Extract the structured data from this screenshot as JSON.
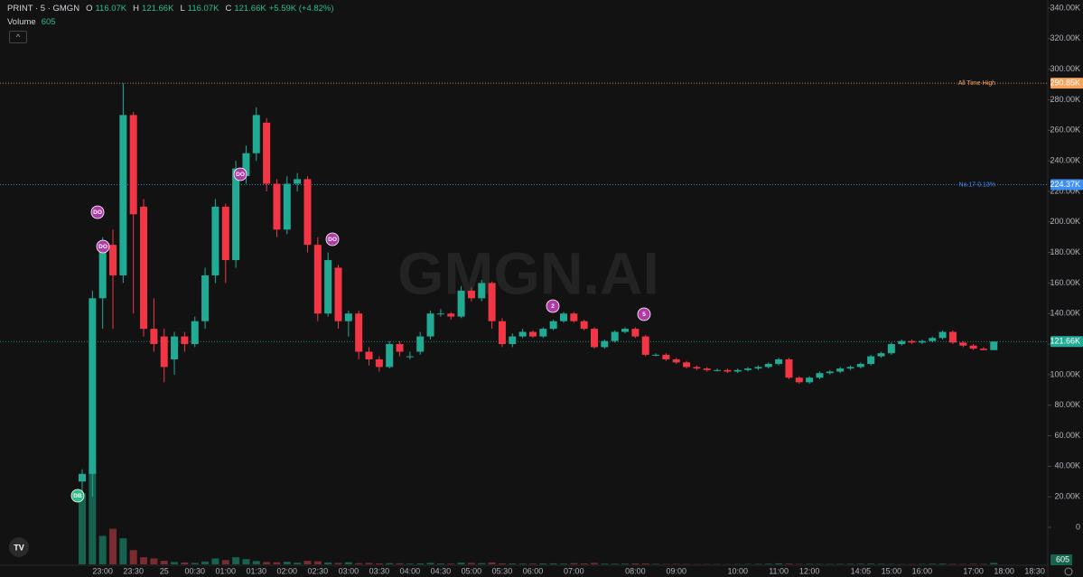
{
  "header": {
    "symbol": "PRINT · 5 · GMGN",
    "o_label": "O",
    "o": "116.07K",
    "h_label": "H",
    "h": "121.66K",
    "l_label": "L",
    "l": "116.07K",
    "c_label": "C",
    "c": "121.66K",
    "change": "+5.59K (+4.82%)",
    "volume_label": "Volume"
  },
  "watermark": "GMGN.AI",
  "markers": [
    {
      "label": "DO"
    },
    {
      "label": "DO"
    },
    {
      "label": "DO"
    },
    {
      "label": "DO"
    },
    {
      "label": "DB"
    },
    {
      "label": "2"
    },
    {
      "label": "5"
    }
  ],
  "chart_data": {
    "type": "candlestick",
    "categories": [
      null,
      null,
      "23:00",
      null,
      null,
      "23:30",
      null,
      null,
      "25",
      null,
      null,
      "00:30",
      null,
      null,
      "01:00",
      null,
      null,
      "01:30",
      null,
      null,
      "02:00",
      null,
      null,
      "02:30",
      null,
      null,
      "03:00",
      null,
      null,
      "03:30",
      null,
      null,
      "04:00",
      null,
      null,
      "04:30",
      null,
      null,
      "05:00",
      null,
      null,
      "05:30",
      null,
      null,
      "06:00",
      null,
      null,
      null,
      "07:00",
      null,
      null,
      null,
      null,
      null,
      "08:00",
      null,
      null,
      null,
      "09:00",
      null,
      null,
      null,
      null,
      null,
      "10:00",
      null,
      null,
      null,
      "11:00",
      null,
      null,
      "12:00",
      null,
      null,
      null,
      null,
      "14:05",
      null,
      null,
      "15:00",
      null,
      null,
      "16:00",
      null,
      null,
      null,
      null,
      "17:00",
      null,
      null,
      "18:00",
      null,
      null,
      "18:30"
    ],
    "open": [
      30,
      35,
      150,
      185,
      165,
      270,
      210,
      130,
      125,
      110,
      125,
      120,
      135,
      165,
      210,
      175,
      230,
      245,
      265,
      225,
      195,
      225,
      228,
      185,
      140,
      170,
      135,
      140,
      115,
      110,
      105,
      120,
      112,
      115,
      125,
      140,
      140,
      138,
      155,
      150,
      160,
      135,
      120,
      125,
      128,
      125,
      130,
      135,
      140,
      135,
      130,
      118,
      122,
      128,
      130,
      125,
      113,
      113,
      110,
      108,
      105,
      104,
      103,
      103,
      102,
      103,
      104,
      105,
      107,
      110,
      98,
      95,
      98,
      101,
      102,
      104,
      105,
      107,
      112,
      114,
      120,
      122,
      121,
      122,
      124,
      128,
      121,
      119,
      117,
      116.07,
      null,
      null,
      null,
      null
    ],
    "high": [
      38,
      155,
      190,
      195,
      290.85,
      272,
      215,
      150,
      130,
      128,
      128,
      138,
      170,
      215,
      212,
      240,
      250,
      275,
      268,
      228,
      230,
      232,
      230,
      190,
      180,
      172,
      142,
      142,
      118,
      112,
      122,
      122,
      115,
      128,
      142,
      143,
      141,
      158,
      157,
      162,
      161,
      137,
      127,
      130,
      129,
      131,
      136,
      141,
      141,
      136,
      131,
      123,
      129,
      131,
      131,
      126,
      114,
      114,
      111,
      109,
      106,
      105,
      104,
      104,
      104,
      105,
      106,
      108,
      111,
      111,
      99,
      99,
      102,
      103,
      105,
      106,
      108,
      113,
      115,
      121,
      123,
      123,
      123,
      125,
      129,
      129,
      122,
      120,
      118,
      121.66,
      null,
      null,
      null,
      null
    ],
    "low": [
      20,
      20,
      130,
      130,
      160,
      140,
      125,
      115,
      95,
      100,
      115,
      118,
      130,
      160,
      160,
      170,
      225,
      240,
      220,
      190,
      192,
      220,
      180,
      135,
      138,
      130,
      125,
      110,
      106,
      102,
      104,
      112,
      110,
      113,
      123,
      138,
      136,
      137,
      148,
      148,
      130,
      118,
      118,
      124,
      124,
      124,
      129,
      134,
      134,
      129,
      117,
      117,
      121,
      127,
      124,
      112,
      112,
      109,
      107,
      104,
      103,
      102,
      102,
      101,
      101,
      102,
      103,
      104,
      106,
      97,
      94,
      94,
      97,
      100,
      101,
      103,
      104,
      106,
      111,
      113,
      119,
      120,
      120,
      121,
      123,
      120,
      118,
      116,
      116,
      116.07,
      null,
      null,
      null,
      null
    ],
    "close": [
      35,
      150,
      185,
      165,
      270,
      205,
      130,
      120,
      105,
      125,
      120,
      135,
      165,
      210,
      175,
      235,
      245,
      270,
      225,
      195,
      225,
      228,
      185,
      140,
      175,
      135,
      140,
      115,
      110,
      105,
      120,
      115,
      112,
      125,
      140,
      140,
      138,
      155,
      150,
      160,
      135,
      120,
      125,
      128,
      125,
      130,
      135,
      140,
      135,
      130,
      118,
      122,
      128,
      130,
      125,
      113,
      113,
      110,
      108,
      105,
      104,
      103,
      103,
      102,
      103,
      104,
      105,
      107,
      110,
      98,
      95,
      98,
      101,
      102,
      104,
      105,
      107,
      112,
      114,
      120,
      122,
      121,
      122,
      124,
      128,
      121,
      119,
      117,
      116.07,
      121.66,
      null,
      null,
      null,
      null
    ],
    "volume": [
      30000,
      40000,
      12000,
      15000,
      11000,
      6000,
      3000,
      2500,
      1500,
      1000,
      800,
      600,
      1200,
      2500,
      1800,
      3000,
      2200,
      1400,
      1000,
      900,
      1100,
      700,
      1500,
      1300,
      800,
      600,
      900,
      500,
      600,
      400,
      500,
      450,
      300,
      400,
      600,
      350,
      300,
      700,
      600,
      500,
      800,
      400,
      350,
      300,
      300,
      350,
      400,
      300,
      500,
      400,
      600,
      300,
      250,
      300,
      400,
      350,
      200,
      150,
      200,
      150,
      100,
      120,
      100,
      100,
      120,
      150,
      200,
      250,
      400,
      300,
      150,
      200,
      150,
      150,
      180,
      200,
      250,
      300,
      200,
      150,
      100,
      120,
      150,
      250,
      300,
      200,
      150,
      200,
      180,
      605,
      null,
      null,
      null,
      null
    ],
    "up_color": "#22ab94",
    "down_color": "#f23645",
    "up_volume_color": "#16624f",
    "down_volume_color": "#7b2a30",
    "ylim": [
      0,
      340
    ],
    "yticks": [
      0,
      {
        "value": 20,
        "label": "20.00K"
      },
      {
        "value": 40,
        "label": "40.00K"
      },
      {
        "value": 60,
        "label": "60.00K"
      },
      {
        "value": 80,
        "label": "80.00K"
      },
      {
        "value": 100,
        "label": "100.00K"
      },
      {
        "value": 120,
        "label": "120.00K"
      },
      {
        "value": 140,
        "label": "140.00K"
      },
      {
        "value": 160,
        "label": "160.00K"
      },
      {
        "value": 180,
        "label": "180.00K"
      },
      {
        "value": 200,
        "label": "200.00K"
      },
      {
        "value": 220,
        "label": "220.00K"
      },
      {
        "value": 240,
        "label": "240.00K"
      },
      {
        "value": 260,
        "label": "260.00K"
      },
      {
        "value": 280,
        "label": "280.00K"
      },
      {
        "value": 300,
        "label": "300.00K"
      },
      {
        "value": 320,
        "label": "320.00K"
      },
      {
        "value": 340,
        "label": "340.00K"
      }
    ],
    "price_lines": [
      {
        "name": "All Time High",
        "value": 290.85,
        "label": "290.85K",
        "color": "#f7a35c"
      },
      {
        "name": "No.17 0.13%",
        "value": 224.37,
        "label": "224.37K",
        "color": "#3d8ff5"
      },
      {
        "value": 121.66,
        "label": "121.66K",
        "color": "#22ab94"
      }
    ]
  }
}
